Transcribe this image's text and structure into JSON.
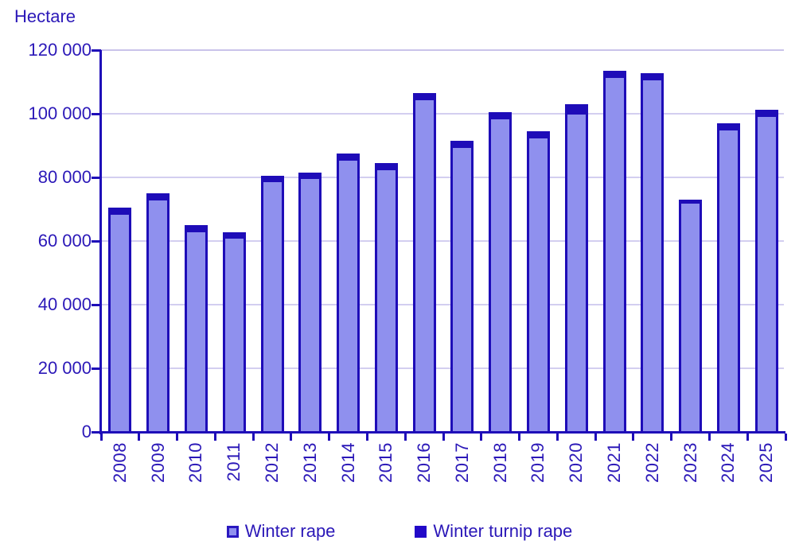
{
  "chart": {
    "unit_label": "Hectare",
    "colors": {
      "winter_rape_fill": "#8f90ee",
      "winter_turnip_rape_fill": "#1e0cb8",
      "axis_and_border": "#1e0cb8",
      "gridline": "#d3cef0",
      "text": "#2b18b8",
      "background": "#ffffff"
    },
    "legend": {
      "winter_rape_label": "Winter rape",
      "winter_turnip_rape_label": "Winter turnip rape"
    }
  },
  "chart_data": {
    "type": "bar",
    "stacked": true,
    "title": "",
    "ylabel": "Hectare",
    "xlabel": "",
    "categories": [
      "2008",
      "2009",
      "2010",
      "2011",
      "2012",
      "2013",
      "2014",
      "2015",
      "2016",
      "2017",
      "2018",
      "2019",
      "2020",
      "2021",
      "2022",
      "2023",
      "2024",
      "2025"
    ],
    "series": [
      {
        "name": "Winter rape",
        "values": [
          69100,
          73400,
          63600,
          61500,
          79300,
          80100,
          86100,
          83100,
          105100,
          89900,
          98900,
          92900,
          100400,
          111900,
          111300,
          72400,
          95400,
          99900
        ]
      },
      {
        "name": "Winter turnip rape",
        "values": [
          1500,
          1500,
          1500,
          1300,
          1300,
          1300,
          1500,
          1500,
          1500,
          1500,
          1500,
          1500,
          2500,
          1500,
          1400,
          500,
          1500,
          1400
        ]
      }
    ],
    "totals": [
      70600,
      74900,
      65100,
      62800,
      80600,
      81400,
      87600,
      84600,
      106600,
      91400,
      100400,
      94400,
      102900,
      113400,
      112700,
      72900,
      96900,
      101300
    ],
    "ylim": [
      0,
      120000
    ],
    "y_ticks": [
      0,
      20000,
      40000,
      60000,
      80000,
      100000,
      120000
    ],
    "y_tick_labels": [
      "0",
      "20 000",
      "40 000",
      "60 000",
      "80 000",
      "100 000",
      "120 000"
    ],
    "grid": "horizontal",
    "legend_position": "bottom"
  }
}
